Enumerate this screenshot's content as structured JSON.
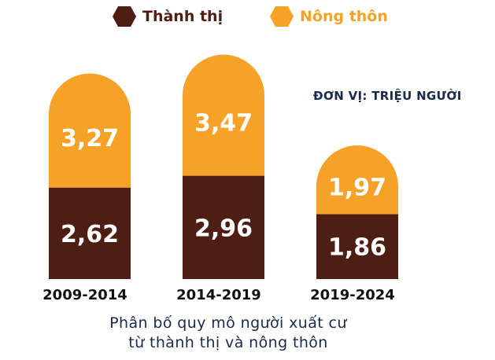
{
  "legend": [
    {
      "label": "Thành thị",
      "color": "#4e1e14"
    },
    {
      "label": "Nông thôn",
      "color": "#f6a127"
    }
  ],
  "unit_note": "ĐƠN VỊ: TRIỆU NGƯỜI",
  "caption": {
    "line1": "Phân bố quy mô người xuất cư",
    "line2": "từ thành thị và nông thôn"
  },
  "chart_data": {
    "type": "bar",
    "stacked": true,
    "categories": [
      "2009-2014",
      "2014-2019",
      "2019-2024"
    ],
    "value_labels_decimal_comma": true,
    "series": [
      {
        "name": "Thành thị",
        "color": "#4e1e14",
        "values": [
          2.62,
          2.96,
          1.86
        ],
        "labels": [
          "2,62",
          "2,96",
          "1,86"
        ]
      },
      {
        "name": "Nông thôn",
        "color": "#f6a127",
        "values": [
          3.27,
          3.47,
          1.97
        ],
        "labels": [
          "3,27",
          "3,47",
          "1,97"
        ]
      }
    ],
    "unit": "ĐƠN VỊ: TRIỆU NGƯỜI",
    "legend_position": "top",
    "grid": false,
    "axes_visible": false
  }
}
